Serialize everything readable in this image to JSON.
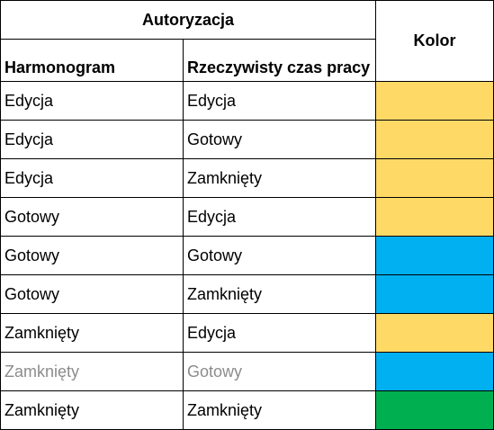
{
  "header": {
    "group_title": "Autoryzacja",
    "color_title": "Kolor",
    "col_schedule": "Harmonogram",
    "col_actual": "Rzeczywisty czas pracy"
  },
  "colors": {
    "yellow": "#FFD966",
    "blue": "#00B0F0",
    "green": "#00B050"
  },
  "rows": [
    {
      "schedule": "Edycja",
      "actual": "Edycja",
      "color": "#FFD966",
      "muted": false
    },
    {
      "schedule": "Edycja",
      "actual": "Gotowy",
      "color": "#FFD966",
      "muted": false
    },
    {
      "schedule": "Edycja",
      "actual": "Zamknięty",
      "color": "#FFD966",
      "muted": false
    },
    {
      "schedule": "Gotowy",
      "actual": "Edycja",
      "color": "#FFD966",
      "muted": false
    },
    {
      "schedule": "Gotowy",
      "actual": "Gotowy",
      "color": "#00B0F0",
      "muted": false
    },
    {
      "schedule": "Gotowy",
      "actual": "Zamknięty",
      "color": "#00B0F0",
      "muted": false
    },
    {
      "schedule": "Zamknięty",
      "actual": "Edycja",
      "color": "#FFD966",
      "muted": false
    },
    {
      "schedule": "Zamknięty",
      "actual": "Gotowy",
      "color": "#00B0F0",
      "muted": true
    },
    {
      "schedule": "Zamknięty",
      "actual": "Zamknięty",
      "color": "#00B050",
      "muted": false
    }
  ]
}
